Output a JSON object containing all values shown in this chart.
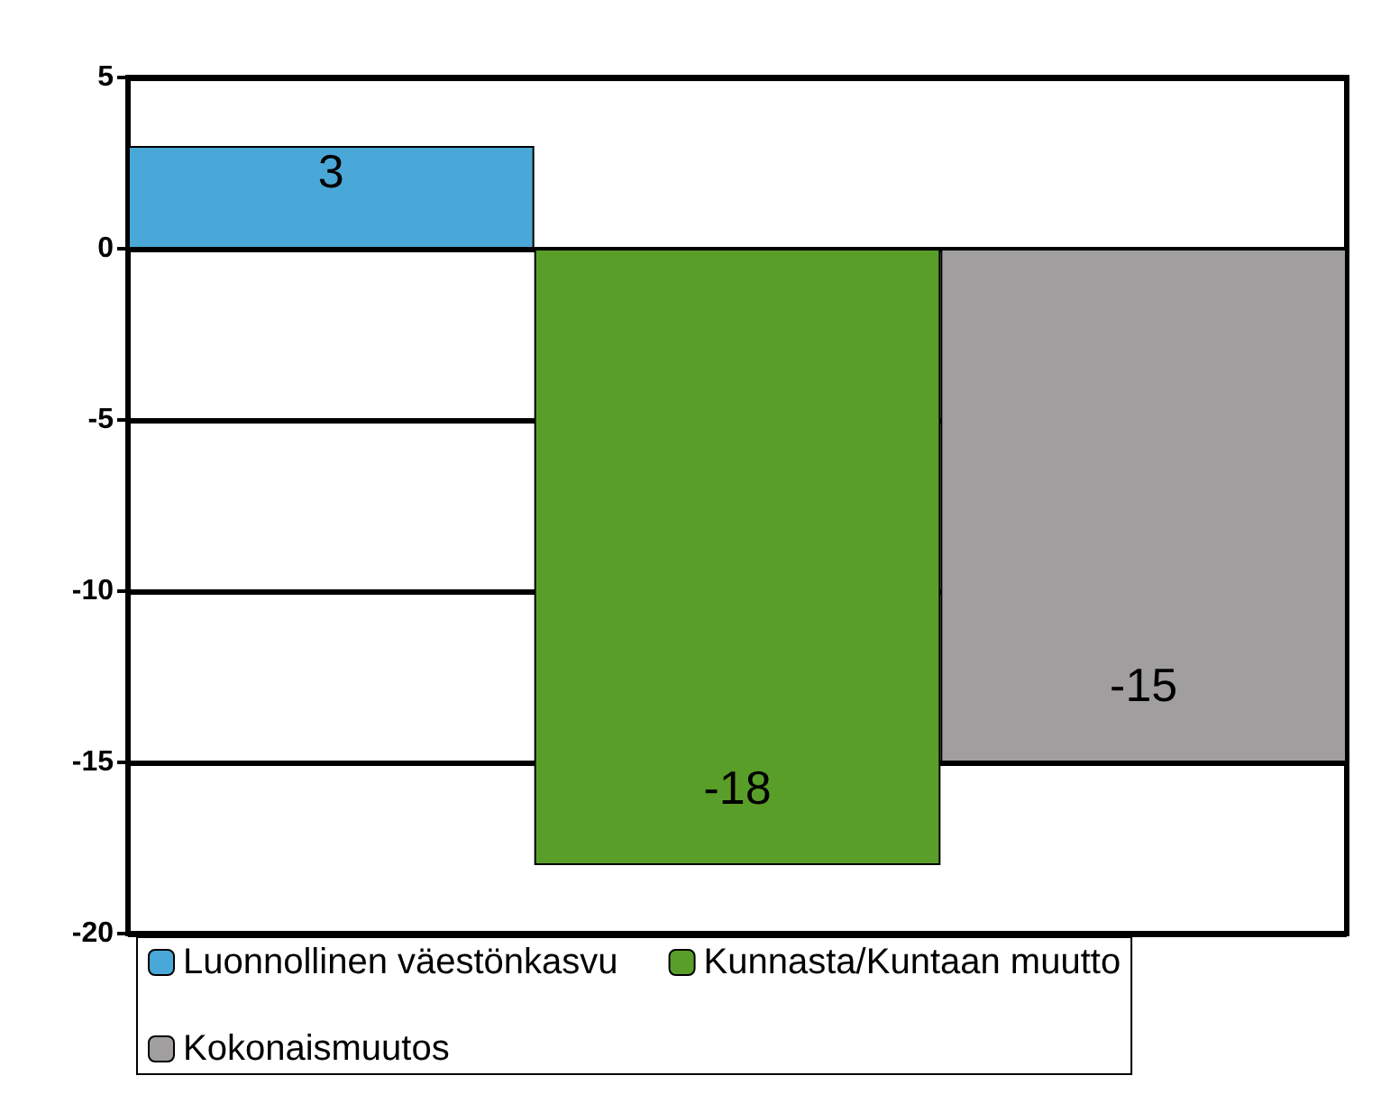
{
  "chart_data": {
    "type": "bar",
    "categories": [
      null
    ],
    "series": [
      {
        "name": "Luonnollinen väestönkasvu",
        "color": "#4aa8d8",
        "values": [
          3
        ]
      },
      {
        "name": "Kunnasta/Kuntaan muutto",
        "color": "#5a9e2a",
        "values": [
          -18
        ]
      },
      {
        "name": "Kokonaismuutos",
        "color": "#a09e9e",
        "values": [
          -15
        ]
      }
    ],
    "ylim": [
      -20,
      5
    ],
    "yticks": [
      -20,
      -15,
      -10,
      -5,
      0,
      5
    ],
    "grid": "y",
    "legend": "bottom",
    "data_labels": true
  }
}
